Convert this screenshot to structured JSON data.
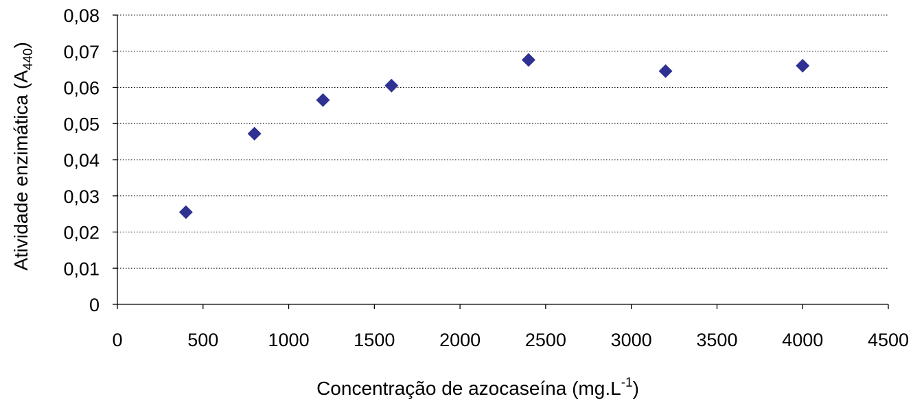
{
  "chart_data": {
    "type": "scatter",
    "xlabel_main": "Concentração de azocaseína (mg.L",
    "xlabel_sup": "-1",
    "xlabel_close": ")",
    "ylabel_main": "Atividade enzimática (A",
    "ylabel_sub": "440",
    "ylabel_close": ")",
    "xlim": [
      0,
      4500
    ],
    "ylim": [
      0,
      0.08
    ],
    "x_ticks": [
      0,
      500,
      1000,
      1500,
      2000,
      2500,
      3000,
      3500,
      4000,
      4500
    ],
    "x_tick_labels": [
      "0",
      "500",
      "1000",
      "1500",
      "2000",
      "2500",
      "3000",
      "3500",
      "4000",
      "4500"
    ],
    "y_ticks": [
      0,
      0.01,
      0.02,
      0.03,
      0.04,
      0.05,
      0.06,
      0.07,
      0.08
    ],
    "y_tick_labels": [
      "0",
      "0,01",
      "0,02",
      "0,03",
      "0,04",
      "0,05",
      "0,06",
      "0,07",
      "0,08"
    ],
    "grid": "horizontal dotted",
    "series": [
      {
        "marker": "diamond",
        "color": "#2E3192",
        "x": [
          400,
          800,
          1200,
          1600,
          2400,
          3200,
          4000
        ],
        "y": [
          0.0255,
          0.0472,
          0.0565,
          0.0605,
          0.0676,
          0.0645,
          0.066
        ]
      }
    ]
  }
}
